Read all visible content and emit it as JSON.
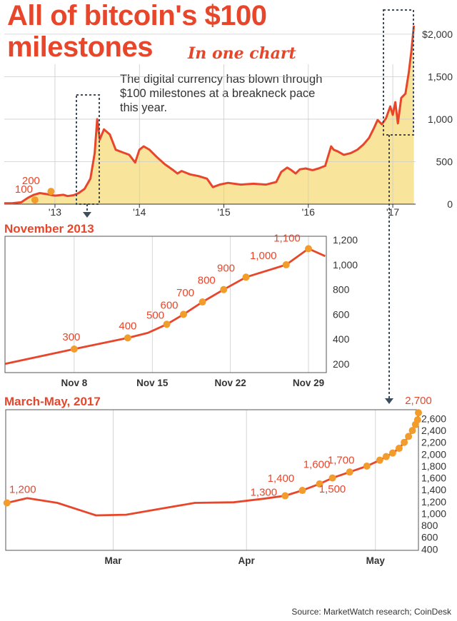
{
  "header": {
    "title_line1": "All of bitcoin's $100",
    "title_line2": "milestones",
    "subtitle": "In one chart",
    "dek": "The digital currency has blown through $100 milestones at a breakneck pace this year."
  },
  "footer": {
    "source": "Source: MarketWatch research; CoinDesk"
  },
  "colors": {
    "accent": "#e8462b",
    "area": "#f8e59b",
    "marker": "#f29c2c",
    "grid": "#cccccc",
    "frame": "#555555"
  },
  "chart_data": [
    {
      "type": "area",
      "title": "",
      "xlabel": "",
      "ylabel": "",
      "x_range": [
        2012.4,
        2017.27
      ],
      "ylim": [
        0,
        2150
      ],
      "x_tick_labels": [
        "'13",
        "'14",
        "'15",
        "'16",
        "'17"
      ],
      "x_tick_values": [
        2013.0,
        2014.0,
        2015.0,
        2016.0,
        2017.0
      ],
      "y_tick_labels": [
        "0",
        "500",
        "1,000",
        "1,500",
        "$2,000"
      ],
      "y_tick_values": [
        0,
        500,
        1000,
        1500,
        2000
      ],
      "grid": "vertical-and-horizontal",
      "milestone_labels": [
        {
          "text": "100",
          "x": 2012.56,
          "y": 100
        },
        {
          "text": "200",
          "x": 2012.75,
          "y": 200
        }
      ],
      "series": [
        {
          "values": [
            [
              2012.4,
              10
            ],
            [
              2012.5,
              12
            ],
            [
              2012.6,
              22
            ],
            [
              2012.68,
              75
            ],
            [
              2012.75,
              110
            ],
            [
              2012.82,
              130
            ],
            [
              2012.9,
              118
            ],
            [
              2013.0,
              100
            ],
            [
              2013.1,
              110
            ],
            [
              2013.15,
              95
            ],
            [
              2013.22,
              105
            ],
            [
              2013.28,
              130
            ],
            [
              2013.35,
              180
            ],
            [
              2013.42,
              300
            ],
            [
              2013.47,
              600
            ],
            [
              2013.5,
              1000
            ],
            [
              2013.53,
              760
            ],
            [
              2013.58,
              880
            ],
            [
              2013.65,
              820
            ],
            [
              2013.72,
              640
            ],
            [
              2013.8,
              610
            ],
            [
              2013.88,
              580
            ],
            [
              2013.95,
              490
            ],
            [
              2014.0,
              640
            ],
            [
              2014.05,
              680
            ],
            [
              2014.12,
              640
            ],
            [
              2014.2,
              560
            ],
            [
              2014.3,
              470
            ],
            [
              2014.4,
              400
            ],
            [
              2014.45,
              360
            ],
            [
              2014.5,
              390
            ],
            [
              2014.6,
              350
            ],
            [
              2014.7,
              330
            ],
            [
              2014.8,
              300
            ],
            [
              2014.87,
              200
            ],
            [
              2014.95,
              230
            ],
            [
              2015.05,
              250
            ],
            [
              2015.2,
              230
            ],
            [
              2015.35,
              240
            ],
            [
              2015.5,
              230
            ],
            [
              2015.62,
              260
            ],
            [
              2015.68,
              380
            ],
            [
              2015.75,
              430
            ],
            [
              2015.8,
              400
            ],
            [
              2015.85,
              360
            ],
            [
              2015.9,
              410
            ],
            [
              2015.97,
              420
            ],
            [
              2016.05,
              400
            ],
            [
              2016.12,
              420
            ],
            [
              2016.2,
              450
            ],
            [
              2016.27,
              680
            ],
            [
              2016.3,
              640
            ],
            [
              2016.35,
              620
            ],
            [
              2016.42,
              580
            ],
            [
              2016.5,
              600
            ],
            [
              2016.58,
              640
            ],
            [
              2016.65,
              700
            ],
            [
              2016.72,
              780
            ],
            [
              2016.78,
              900
            ],
            [
              2016.82,
              990
            ],
            [
              2016.87,
              940
            ],
            [
              2016.92,
              1010
            ],
            [
              2016.97,
              1150
            ],
            [
              2017.0,
              1050
            ],
            [
              2017.03,
              1200
            ],
            [
              2017.06,
              950
            ],
            [
              2017.1,
              1250
            ],
            [
              2017.15,
              1300
            ],
            [
              2017.19,
              1550
            ],
            [
              2017.22,
              1800
            ],
            [
              2017.25,
              2100
            ]
          ]
        }
      ]
    },
    {
      "type": "line",
      "title": "November 2013",
      "xlabel": "",
      "ylabel": "",
      "x_range": [
        1.8,
        30.6
      ],
      "ylim": [
        130,
        1230
      ],
      "x_tick_labels": [
        "Nov 8",
        "Nov 15",
        "Nov 22",
        "Nov 29"
      ],
      "x_tick_values": [
        8,
        15,
        22,
        29
      ],
      "y_tick_labels": [
        "200",
        "400",
        "600",
        "800",
        "1,000",
        "1,200"
      ],
      "y_tick_values": [
        200,
        400,
        600,
        800,
        1000,
        1200
      ],
      "grid": "vertical",
      "series": [
        {
          "values": [
            [
              1.8,
              200
            ],
            [
              8,
              320
            ],
            [
              12.8,
              410
            ],
            [
              14.6,
              450
            ],
            [
              16.3,
              520
            ],
            [
              17.8,
              600
            ],
            [
              19.5,
              700
            ],
            [
              21.4,
              800
            ],
            [
              23.4,
              900
            ],
            [
              27.0,
              1000
            ],
            [
              29.0,
              1130
            ],
            [
              30.5,
              1070
            ]
          ]
        }
      ],
      "milestones": [
        {
          "label": "300",
          "x": 8,
          "y": 320
        },
        {
          "label": "400",
          "x": 12.8,
          "y": 410
        },
        {
          "label": "500",
          "x": 16.3,
          "y": 520
        },
        {
          "label": "600",
          "x": 17.8,
          "y": 600
        },
        {
          "label": "700",
          "x": 19.5,
          "y": 700
        },
        {
          "label": "800",
          "x": 21.4,
          "y": 800
        },
        {
          "label": "900",
          "x": 23.4,
          "y": 900
        },
        {
          "label": "1,000",
          "x": 27.0,
          "y": 1000
        },
        {
          "label": "1,100",
          "x": 29.0,
          "y": 1130
        }
      ]
    },
    {
      "type": "line",
      "title": "March-May, 2017",
      "xlabel": "",
      "ylabel": "",
      "x_range": [
        50,
        146
      ],
      "ylim": [
        380,
        2750
      ],
      "x_tick_labels": [
        "Mar",
        "Apr",
        "May"
      ],
      "x_tick_values": [
        75,
        106,
        136
      ],
      "y_tick_labels": [
        "400",
        "600",
        "800",
        "1,000",
        "1,200",
        "1,400",
        "1,600",
        "1,800",
        "2,000",
        "2,200",
        "2,400",
        "2,600"
      ],
      "y_tick_values": [
        400,
        600,
        800,
        1000,
        1200,
        1400,
        1600,
        1800,
        2000,
        2200,
        2400,
        2600
      ],
      "grid": "vertical",
      "series": [
        {
          "values": [
            [
              50.3,
              1180
            ],
            [
              55,
              1260
            ],
            [
              62,
              1180
            ],
            [
              71,
              970
            ],
            [
              78,
              980
            ],
            [
              86,
              1080
            ],
            [
              94,
              1180
            ],
            [
              103,
              1190
            ],
            [
              110,
              1250
            ],
            [
              115,
              1300
            ],
            [
              119,
              1390
            ],
            [
              123,
              1500
            ],
            [
              126,
              1600
            ],
            [
              130,
              1700
            ],
            [
              134,
              1800
            ],
            [
              137,
              1900
            ],
            [
              138.5,
              1960
            ],
            [
              140,
              2020
            ],
            [
              141.5,
              2100
            ],
            [
              142.7,
              2200
            ],
            [
              143.7,
              2300
            ],
            [
              144.6,
              2400
            ],
            [
              145.3,
              2500
            ],
            [
              145.8,
              2580
            ],
            [
              146,
              2700
            ]
          ]
        }
      ],
      "milestones": [
        {
          "label": "1,200",
          "x": 50.3,
          "y": 1180
        },
        {
          "label": "1,300",
          "x": 115,
          "y": 1300
        },
        {
          "label": "1,400",
          "x": 119,
          "y": 1390
        },
        {
          "label": "1,500",
          "x": 123,
          "y": 1500
        },
        {
          "label": "1,600",
          "x": 126,
          "y": 1600
        },
        {
          "label": "1,700",
          "x": 130,
          "y": 1700
        },
        {
          "label": "",
          "x": 134,
          "y": 1800
        },
        {
          "label": "",
          "x": 137,
          "y": 1900
        },
        {
          "label": "",
          "x": 138.5,
          "y": 1960
        },
        {
          "label": "",
          "x": 140,
          "y": 2020
        },
        {
          "label": "",
          "x": 141.5,
          "y": 2100
        },
        {
          "label": "",
          "x": 142.7,
          "y": 2200
        },
        {
          "label": "",
          "x": 143.7,
          "y": 2300
        },
        {
          "label": "",
          "x": 144.6,
          "y": 2400
        },
        {
          "label": "",
          "x": 145.3,
          "y": 2500
        },
        {
          "label": "",
          "x": 145.8,
          "y": 2580
        },
        {
          "label": "2,700",
          "x": 146,
          "y": 2700
        }
      ]
    }
  ]
}
